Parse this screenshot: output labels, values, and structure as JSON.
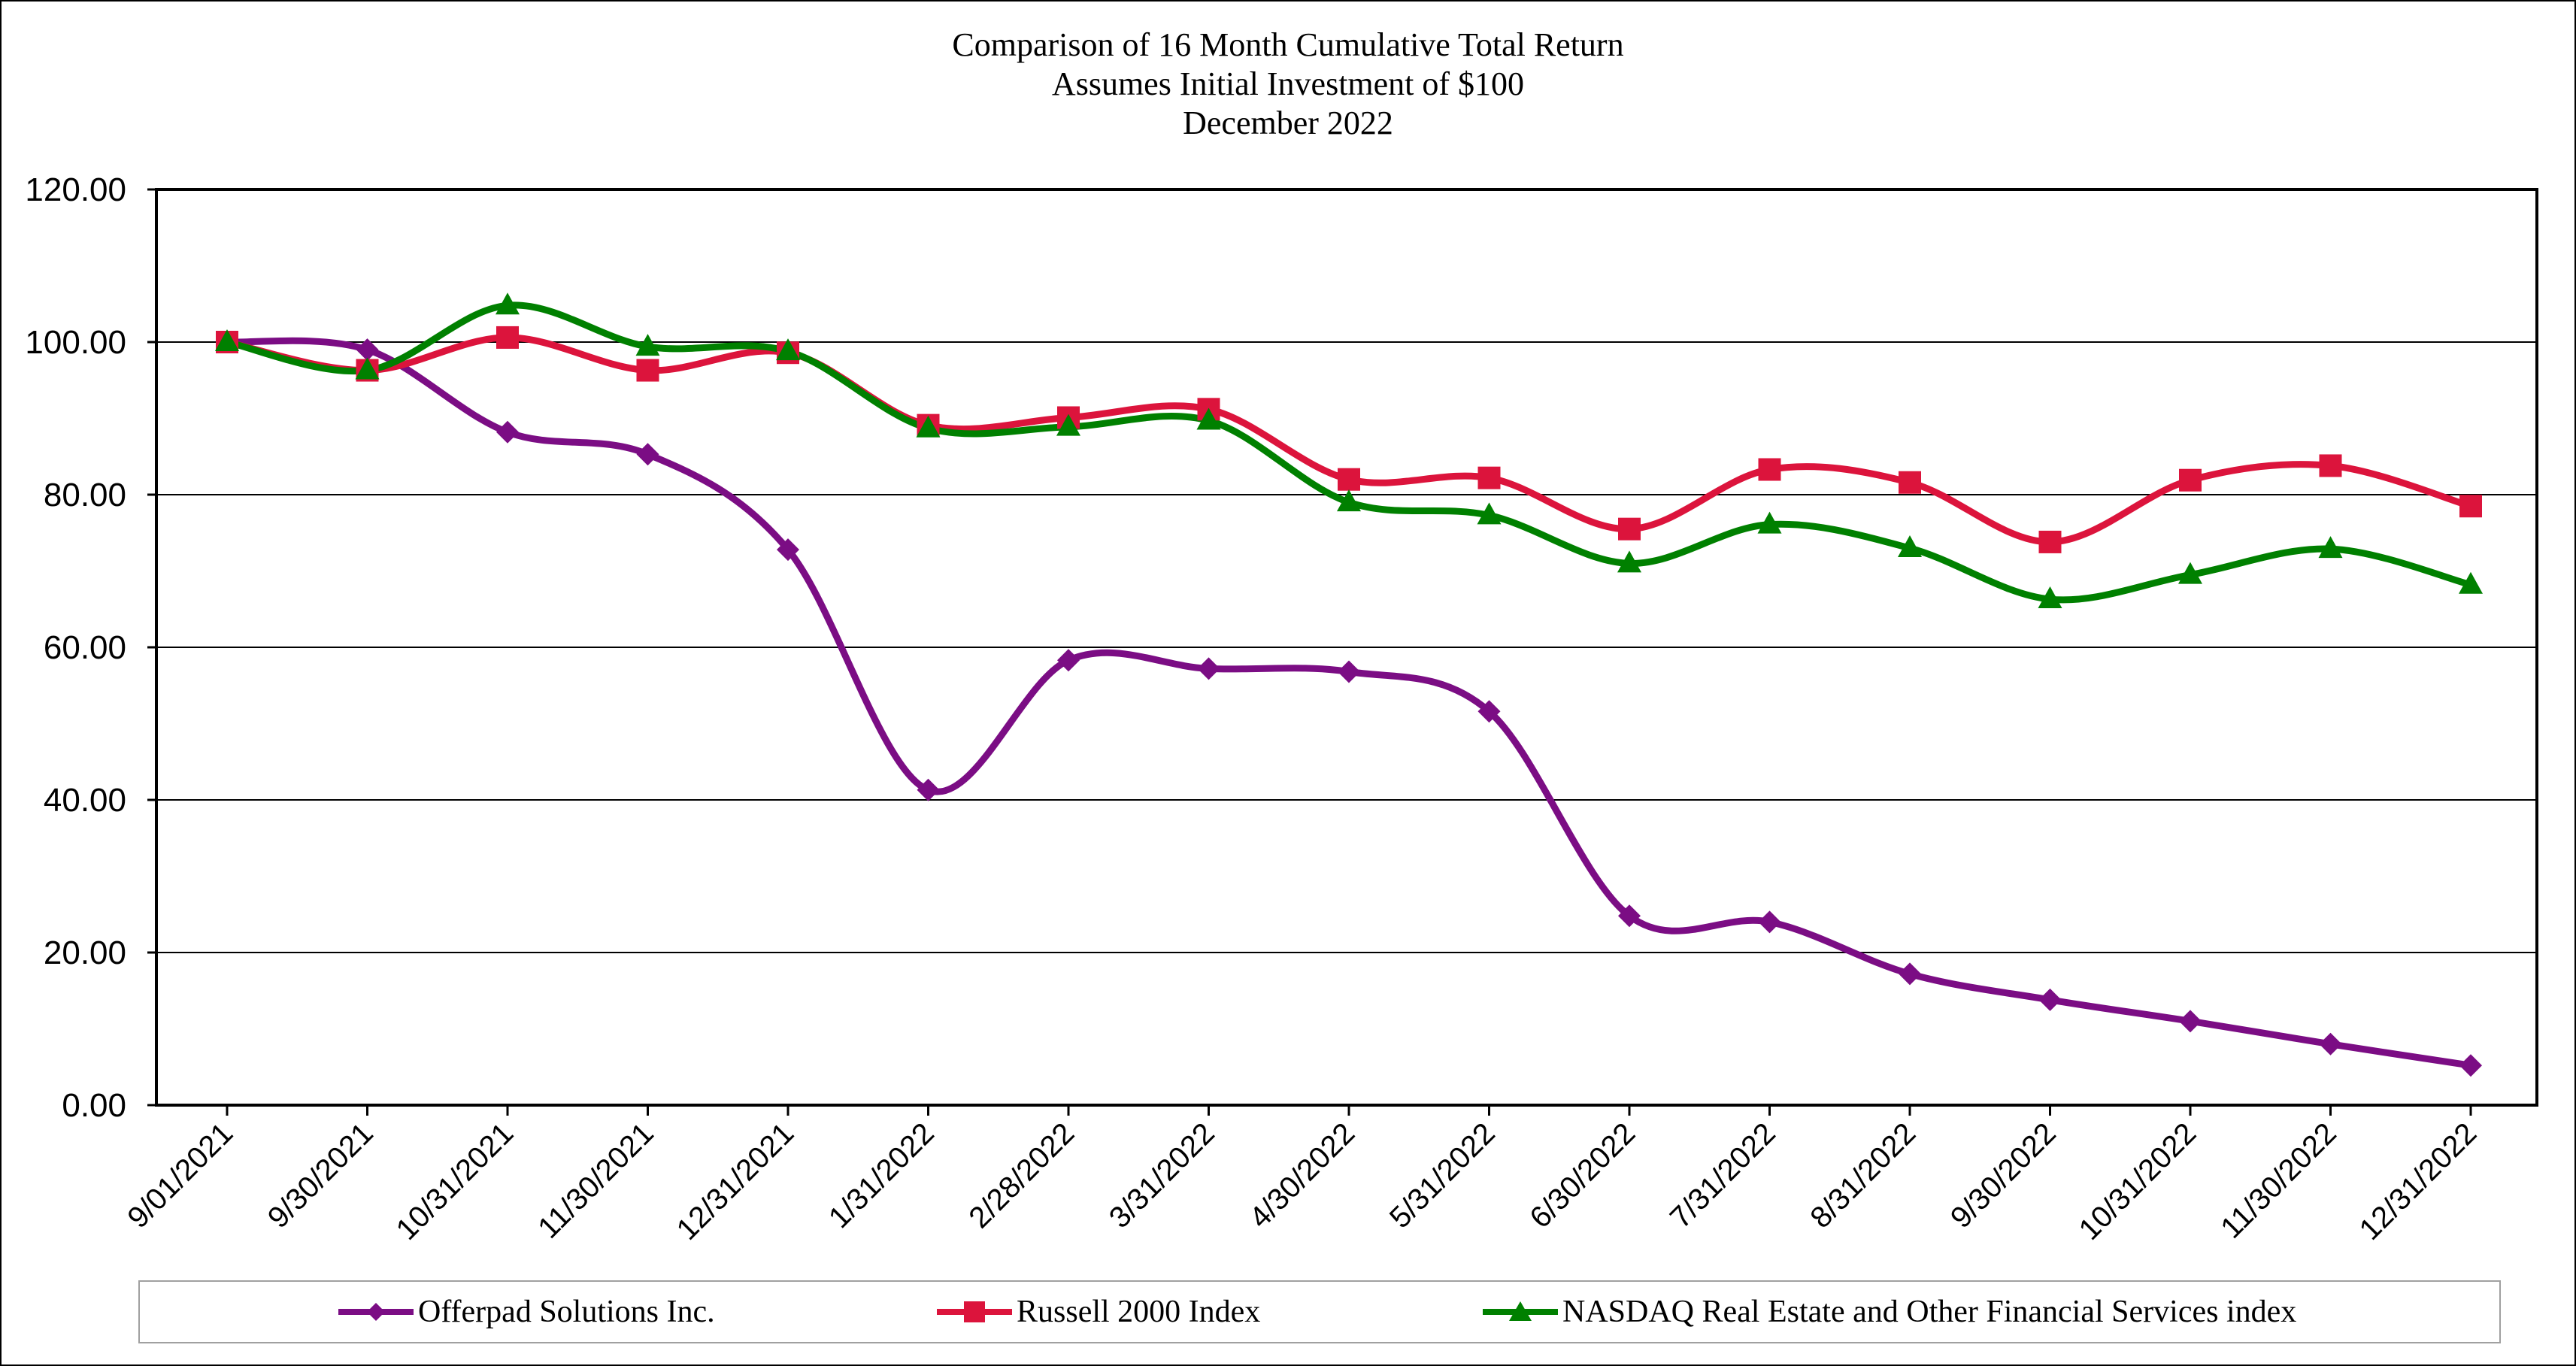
{
  "chart_data": {
    "type": "line",
    "title_lines": [
      "Comparison of 16 Month Cumulative Total Return",
      "Assumes Initial Investment of $100",
      "December 2022"
    ],
    "x": [
      "9/01/2021",
      "9/30/2021",
      "10/31/2021",
      "11/30/2021",
      "12/31/2021",
      "1/31/2022",
      "2/28/2022",
      "3/31/2022",
      "4/30/2022",
      "5/31/2022",
      "6/30/2022",
      "7/31/2022",
      "8/31/2022",
      "9/30/2022",
      "10/31/2022",
      "11/30/2022",
      "12/31/2022"
    ],
    "ylim": [
      0,
      120
    ],
    "yticks": [
      "0.00",
      "20.00",
      "40.00",
      "60.00",
      "80.00",
      "100.00",
      "120.00"
    ],
    "grid": true,
    "legend_position": "bottom",
    "series": [
      {
        "name": "Offerpad Solutions Inc.",
        "color": "#7b0d84",
        "marker": "diamond",
        "values": [
          100.0,
          99.0,
          88.2,
          85.3,
          72.8,
          41.3,
          58.3,
          57.2,
          56.8,
          51.6,
          24.8,
          24.0,
          17.2,
          13.8,
          11.0,
          8.0,
          5.2
        ]
      },
      {
        "name": "Russell 2000 Index",
        "color": "#dc143c",
        "marker": "square",
        "values": [
          100.0,
          96.3,
          100.6,
          96.3,
          98.6,
          89.1,
          90.1,
          91.2,
          82.0,
          82.2,
          75.5,
          83.3,
          81.6,
          73.8,
          81.9,
          83.8,
          78.5
        ]
      },
      {
        "name": "NASDAQ Real Estate and Other Financial Services index",
        "color": "#008000",
        "marker": "triangle",
        "values": [
          100.0,
          96.3,
          104.8,
          99.4,
          98.8,
          88.7,
          88.9,
          89.7,
          79.0,
          77.3,
          71.0,
          76.1,
          73.0,
          66.3,
          69.5,
          72.9,
          68.2
        ]
      }
    ]
  }
}
